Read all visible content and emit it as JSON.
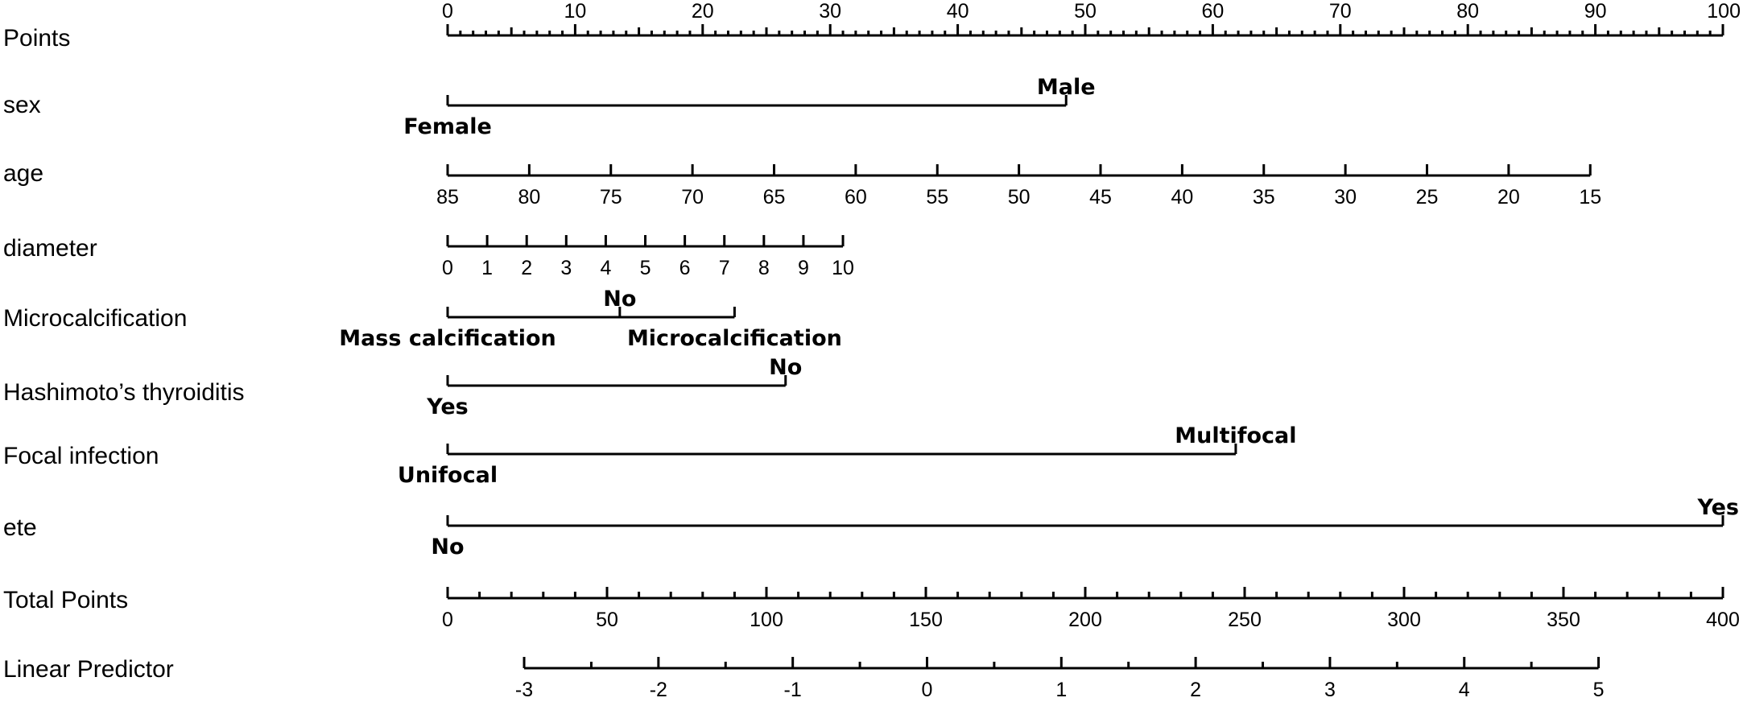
{
  "chart_data": {
    "type": "nomogram",
    "points_scale": [
      0,
      100
    ],
    "rows": [
      {
        "name": "Points",
        "ticks": [
          {
            "label": "0",
            "points": 0
          },
          {
            "label": "10",
            "points": 10
          },
          {
            "label": "20",
            "points": 20
          },
          {
            "label": "30",
            "points": 30
          },
          {
            "label": "40",
            "points": 40
          },
          {
            "label": "50",
            "points": 50
          },
          {
            "label": "60",
            "points": 60
          },
          {
            "label": "70",
            "points": 70
          },
          {
            "label": "80",
            "points": 80
          },
          {
            "label": "90",
            "points": 90
          },
          {
            "label": "100",
            "points": 100
          }
        ],
        "minor_step": 1,
        "medium_step": 5
      },
      {
        "name": "sex",
        "categories": [
          {
            "label": "Female",
            "points": 0
          },
          {
            "label": "Male",
            "points": 48.5
          }
        ]
      },
      {
        "name": "age",
        "ticks": [
          {
            "label": "85",
            "points": 0
          },
          {
            "label": "80",
            "points": 6.4
          },
          {
            "label": "75",
            "points": 12.8
          },
          {
            "label": "70",
            "points": 19.2
          },
          {
            "label": "65",
            "points": 25.6
          },
          {
            "label": "60",
            "points": 32.0
          },
          {
            "label": "55",
            "points": 38.4
          },
          {
            "label": "50",
            "points": 44.8
          },
          {
            "label": "45",
            "points": 51.2
          },
          {
            "label": "40",
            "points": 57.6
          },
          {
            "label": "35",
            "points": 64.0
          },
          {
            "label": "30",
            "points": 70.4
          },
          {
            "label": "25",
            "points": 76.8
          },
          {
            "label": "20",
            "points": 83.2
          },
          {
            "label": "15",
            "points": 89.6
          }
        ]
      },
      {
        "name": "diameter",
        "ticks": [
          {
            "label": "0",
            "points": 0
          },
          {
            "label": "1",
            "points": 3.1
          },
          {
            "label": "2",
            "points": 6.2
          },
          {
            "label": "3",
            "points": 9.3
          },
          {
            "label": "4",
            "points": 12.4
          },
          {
            "label": "5",
            "points": 15.5
          },
          {
            "label": "6",
            "points": 18.6
          },
          {
            "label": "7",
            "points": 21.7
          },
          {
            "label": "8",
            "points": 24.8
          },
          {
            "label": "9",
            "points": 27.9
          },
          {
            "label": "10",
            "points": 31.0
          }
        ]
      },
      {
        "name": "Microcalcification",
        "categories": [
          {
            "label": "Mass calcification",
            "points": 0
          },
          {
            "label": "No",
            "points": 13.5
          },
          {
            "label": "Microcalcification",
            "points": 22.5
          }
        ]
      },
      {
        "name": "Hashimoto’s thyroiditis",
        "categories": [
          {
            "label": "Yes",
            "points": 0
          },
          {
            "label": "No",
            "points": 26.5
          }
        ]
      },
      {
        "name": "Focal infection",
        "categories": [
          {
            "label": "Unifocal",
            "points": 0
          },
          {
            "label": "Multifocal",
            "points": 61.8
          }
        ]
      },
      {
        "name": "ete",
        "categories": [
          {
            "label": "No",
            "points": 0
          },
          {
            "label": "Yes",
            "points": 100
          }
        ]
      },
      {
        "name": "Total Points",
        "range": [
          0,
          400
        ],
        "ticks": [
          {
            "label": "0",
            "value": 0
          },
          {
            "label": "50",
            "value": 50
          },
          {
            "label": "100",
            "value": 100
          },
          {
            "label": "150",
            "value": 150
          },
          {
            "label": "200",
            "value": 200
          },
          {
            "label": "250",
            "value": 250
          },
          {
            "label": "300",
            "value": 300
          },
          {
            "label": "350",
            "value": 350
          },
          {
            "label": "400",
            "value": 400
          }
        ],
        "minor_step": 10
      },
      {
        "name": "Linear Predictor",
        "total_points_range": [
          24,
          361
        ],
        "value_range": [
          -3,
          5
        ],
        "ticks": [
          {
            "label": "-3",
            "value": -3
          },
          {
            "label": "-2",
            "value": -2
          },
          {
            "label": "-1",
            "value": -1
          },
          {
            "label": "0",
            "value": 0
          },
          {
            "label": "1",
            "value": 1
          },
          {
            "label": "2",
            "value": 2
          },
          {
            "label": "3",
            "value": 3
          },
          {
            "label": "4",
            "value": 4
          },
          {
            "label": "5",
            "value": 5
          }
        ],
        "minor_step": 0.5
      }
    ]
  }
}
